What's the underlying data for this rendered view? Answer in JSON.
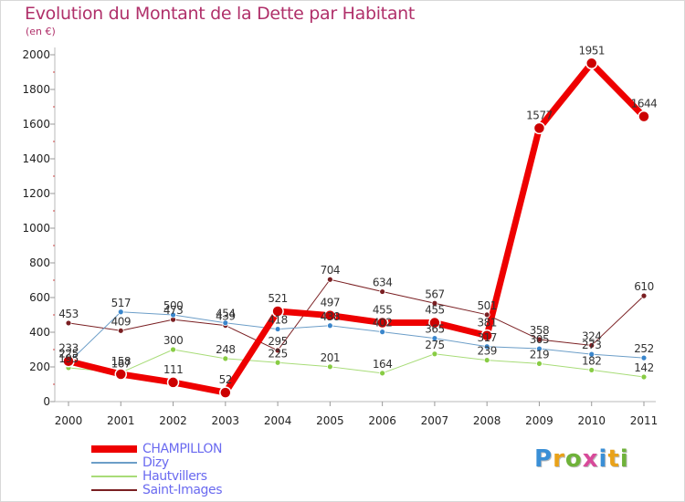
{
  "title": "Evolution du Montant de la Dette par Habitant",
  "subtitle": "(en €)",
  "logo": {
    "text": "Proxiti",
    "colors": [
      "#3a8fd6",
      "#e9a21a",
      "#6fb23a",
      "#d84a9a",
      "#3a8fd6",
      "#e9a21a",
      "#6fb23a"
    ]
  },
  "chart_data": {
    "type": "line",
    "title": "Evolution du Montant de la Dette par Habitant",
    "subtitle": "(en €)",
    "x": [
      "2000",
      "2001",
      "2002",
      "2003",
      "2004",
      "2005",
      "2006",
      "2007",
      "2008",
      "2009",
      "2010",
      "2011"
    ],
    "ylim": [
      0,
      2000
    ],
    "yticks": [
      0,
      200,
      400,
      600,
      800,
      1000,
      1200,
      1400,
      1600,
      1800,
      2000
    ],
    "grid": false,
    "legend_position": "bottom-left",
    "series": [
      {
        "name": "Saint-Images",
        "color": "#7a1f22",
        "marker": "#7a1f22",
        "width": 1,
        "radius": 3,
        "values": [
          453,
          409,
          473,
          439,
          295,
          704,
          634,
          567,
          501,
          358,
          324,
          610
        ],
        "labels": [
          "453",
          "409",
          "473",
          "439",
          "295",
          "704",
          "634",
          "567",
          "501",
          "358",
          "324",
          "610"
        ]
      },
      {
        "name": "Hautvillers",
        "color": "#a8dc78",
        "marker": "#88cc44",
        "width": 1,
        "radius": 3,
        "values": [
          195,
          167,
          300,
          248,
          225,
          201,
          164,
          275,
          239,
          219,
          182,
          142
        ],
        "labels": [
          "195",
          "167",
          "300",
          "248",
          "225",
          "201",
          "164",
          "275",
          "239",
          "219",
          "182",
          "142"
        ]
      },
      {
        "name": "Dizy",
        "color": "#6c9ec8",
        "marker": "#3a86cc",
        "width": 1,
        "radius": 3,
        "values": [
          225,
          517,
          500,
          454,
          418,
          438,
          402,
          365,
          317,
          305,
          273,
          252
        ],
        "labels": [
          "225",
          "517",
          "500",
          "454",
          "418",
          "438",
          "402",
          "365",
          "317",
          "305",
          "273",
          "252"
        ]
      },
      {
        "name": "CHAMPILLON",
        "color": "#ee0000",
        "marker": "#cc0000",
        "width": 7,
        "radius": 6,
        "values": [
          233,
          158,
          111,
          52,
          521,
          497,
          455,
          455,
          381,
          1577,
          1951,
          1644
        ],
        "labels": [
          "233",
          "158",
          "111",
          "52",
          "521",
          "497",
          "455",
          "455",
          "381",
          "1577",
          "1951",
          "1644"
        ]
      }
    ]
  }
}
